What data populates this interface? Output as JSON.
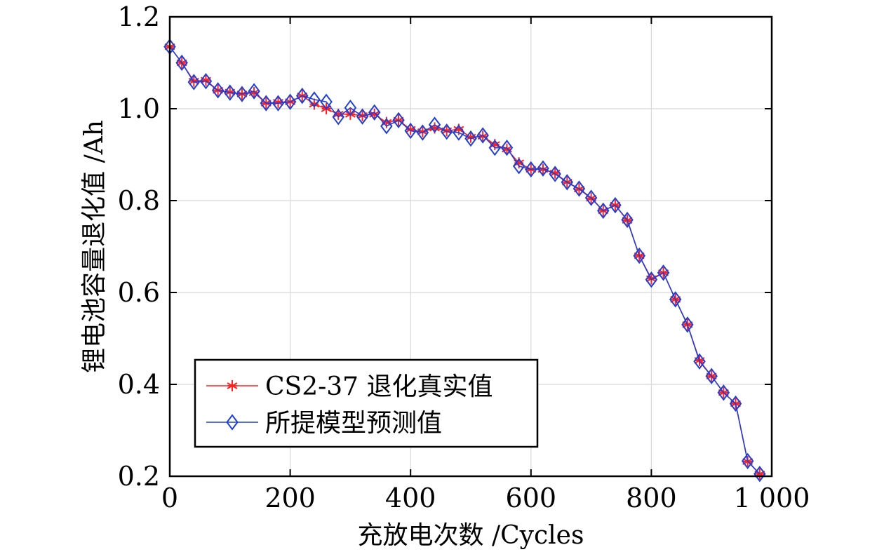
{
  "chart_data": {
    "type": "line",
    "title": "",
    "xlabel": "充放电次数 /Cycles",
    "ylabel": "锂电池容量退化值 /Ah",
    "xlim": [
      0,
      1000
    ],
    "ylim": [
      0.2,
      1.2
    ],
    "xticks": [
      0,
      200,
      400,
      600,
      800,
      1000
    ],
    "xtick_labels": [
      "0",
      "200",
      "400",
      "600",
      "800",
      "1 000"
    ],
    "yticks": [
      0.2,
      0.4,
      0.6,
      0.8,
      1.0,
      1.2
    ],
    "ytick_labels": [
      "0.2",
      "0.4",
      "0.6",
      "0.8",
      "1.0",
      "1.2"
    ],
    "grid": true,
    "legend_position": "bottom-left",
    "x": [
      0,
      20,
      40,
      60,
      80,
      100,
      120,
      140,
      160,
      180,
      200,
      220,
      240,
      260,
      280,
      300,
      320,
      340,
      360,
      380,
      400,
      420,
      440,
      460,
      480,
      500,
      520,
      540,
      560,
      580,
      600,
      620,
      640,
      660,
      680,
      700,
      720,
      740,
      760,
      780,
      800,
      820,
      840,
      860,
      880,
      900,
      920,
      940,
      960,
      980
    ],
    "series": [
      {
        "name": "CS2-37 退化真实值",
        "color": "#ff2020",
        "marker": "asterisk",
        "values": [
          1.135,
          1.1,
          1.06,
          1.062,
          1.04,
          1.036,
          1.032,
          1.035,
          1.012,
          1.014,
          1.015,
          1.028,
          1.01,
          1.0,
          0.988,
          0.988,
          0.985,
          0.988,
          0.97,
          0.975,
          0.955,
          0.95,
          0.958,
          0.952,
          0.955,
          0.938,
          0.94,
          0.922,
          0.912,
          0.882,
          0.868,
          0.868,
          0.86,
          0.84,
          0.825,
          0.805,
          0.778,
          0.79,
          0.757,
          0.68,
          0.63,
          0.643,
          0.585,
          0.53,
          0.452,
          0.418,
          0.382,
          0.358,
          0.232,
          0.205
        ]
      },
      {
        "name": "所提模型预测值",
        "color": "#1f3fd6",
        "marker": "diamond",
        "values": [
          1.135,
          1.1,
          1.058,
          1.06,
          1.04,
          1.035,
          1.032,
          1.038,
          1.012,
          1.012,
          1.015,
          1.028,
          1.02,
          1.015,
          0.982,
          1.002,
          0.983,
          0.992,
          0.962,
          0.975,
          0.952,
          0.948,
          0.965,
          0.95,
          0.948,
          0.935,
          0.942,
          0.915,
          0.915,
          0.875,
          0.868,
          0.87,
          0.858,
          0.84,
          0.826,
          0.806,
          0.778,
          0.79,
          0.758,
          0.68,
          0.628,
          0.643,
          0.585,
          0.53,
          0.45,
          0.418,
          0.382,
          0.358,
          0.233,
          0.205
        ]
      }
    ]
  }
}
